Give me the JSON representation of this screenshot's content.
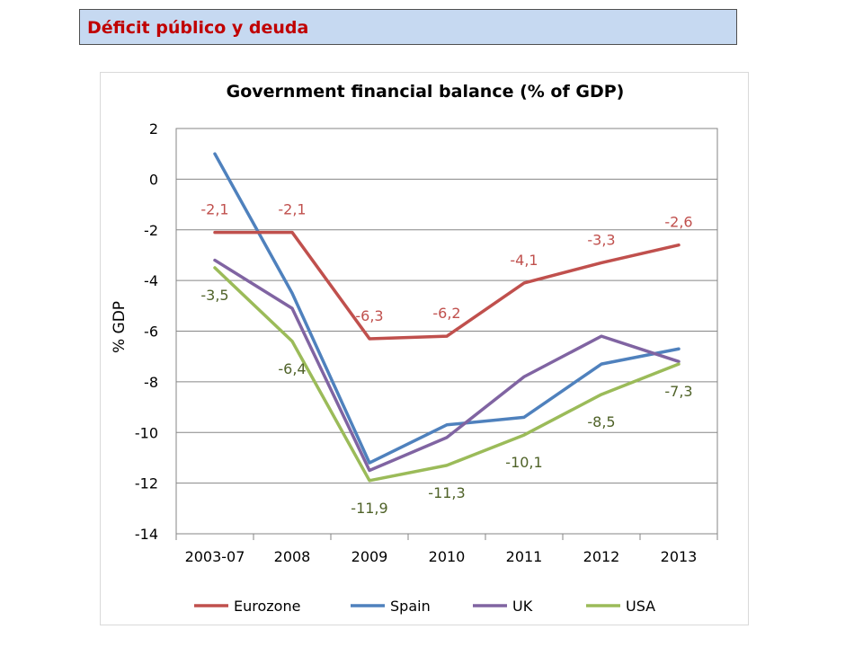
{
  "slide": {
    "title": "Déficit público y deuda"
  },
  "chart_data": {
    "type": "line",
    "title": "Government financial balance (% of GDP)",
    "xlabel": "",
    "ylabel": "% GDP",
    "ylim": [
      -14,
      2
    ],
    "ytick_step": 2,
    "grid": true,
    "legend_position": "bottom",
    "categories": [
      "2003-07",
      "2008",
      "2009",
      "2010",
      "2011",
      "2012",
      "2013"
    ],
    "series": [
      {
        "name": "Eurozone",
        "color": "#c0504d",
        "values": [
          -2.1,
          -2.1,
          -6.3,
          -6.2,
          -4.1,
          -3.3,
          -2.6
        ],
        "labels": [
          "-2,1",
          "-2,1",
          "-6,3",
          "-6,2",
          "-4,1",
          "-3,3",
          "-2,6"
        ]
      },
      {
        "name": "Spain",
        "color": "#4f81bd",
        "values": [
          1.0,
          -4.5,
          -11.2,
          -9.7,
          -9.4,
          -7.3,
          -6.7
        ],
        "labels": []
      },
      {
        "name": "UK",
        "color": "#8064a2",
        "values": [
          -3.2,
          -5.1,
          -11.5,
          -10.2,
          -7.8,
          -6.2,
          -7.2
        ],
        "labels": []
      },
      {
        "name": "USA",
        "color": "#9bbb59",
        "values": [
          -3.5,
          -6.4,
          -11.9,
          -11.3,
          -10.1,
          -8.5,
          -7.3
        ],
        "labels": [
          "-3,5",
          "-6,4",
          "-11,9",
          "-11,3",
          "-10,1",
          "-8,5",
          "-7,3"
        ],
        "label_color": "#4f6228"
      }
    ]
  }
}
